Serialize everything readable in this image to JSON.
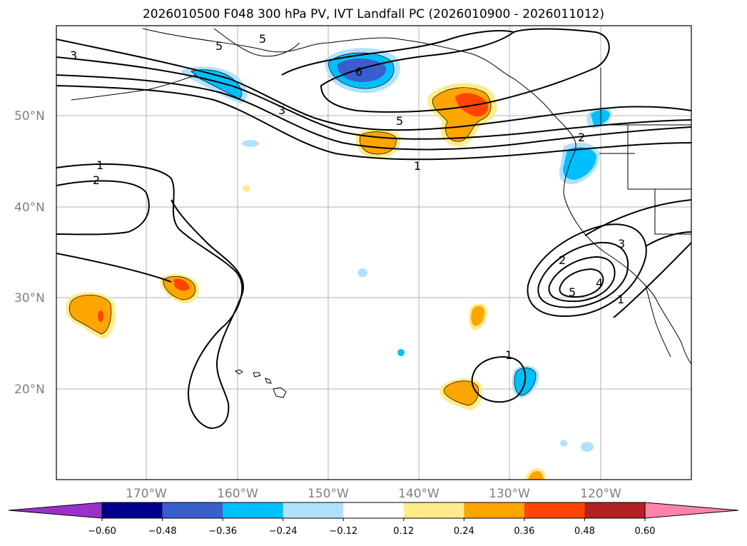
{
  "title": "2026010500 F048 300 hPa PV, IVT Landfall PC (2026010900 - 2026011012)",
  "lat_labels": [
    "50°N",
    "40°N",
    "30°N",
    "20°N"
  ],
  "lon_labels": [
    "170°W",
    "160°W",
    "150°W",
    "140°W",
    "130°W",
    "120°W"
  ],
  "contour_labels": [
    "3",
    "5",
    "6",
    "5",
    "3",
    "5",
    "1",
    "1",
    "2",
    "2",
    "3",
    "4",
    "5",
    "1",
    "1",
    "2"
  ],
  "colorbar": {
    "ticks": [
      "−0.60",
      "−0.48",
      "−0.36",
      "−0.24",
      "−0.12",
      "0.12",
      "0.24",
      "0.36",
      "0.48",
      "0.60"
    ],
    "colors": [
      "#9932cc",
      "#00008b",
      "#3a5fcd",
      "#00bfff",
      "#b0e2ff",
      "#ffffff",
      "#ffec8b",
      "#ffa500",
      "#ff4500",
      "#b22222",
      "#ff82ab"
    ],
    "levels": [
      -0.6,
      -0.48,
      -0.36,
      -0.24,
      -0.12,
      0.12,
      0.24,
      0.36,
      0.48,
      0.6
    ]
  }
}
